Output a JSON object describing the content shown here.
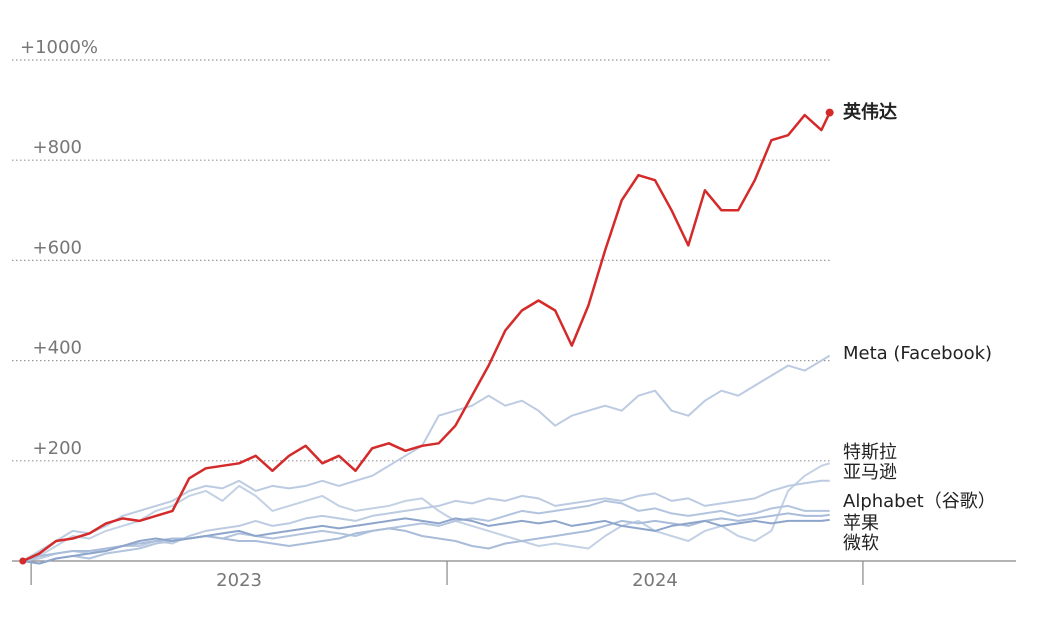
{
  "chart_data": {
    "type": "line",
    "x": [
      2022.98,
      2023.02,
      2023.06,
      2023.1,
      2023.14,
      2023.18,
      2023.22,
      2023.26,
      2023.3,
      2023.34,
      2023.38,
      2023.42,
      2023.46,
      2023.5,
      2023.54,
      2023.58,
      2023.62,
      2023.66,
      2023.7,
      2023.74,
      2023.78,
      2023.82,
      2023.86,
      2023.9,
      2023.94,
      2023.98,
      2024.02,
      2024.06,
      2024.1,
      2024.14,
      2024.18,
      2024.22,
      2024.26,
      2024.3,
      2024.34,
      2024.38,
      2024.42,
      2024.46,
      2024.5,
      2024.54,
      2024.58,
      2024.62,
      2024.66,
      2024.7,
      2024.74,
      2024.78,
      2024.82,
      2024.86,
      2024.9,
      2024.92
    ],
    "xlim": [
      2022.954,
      2025.368
    ],
    "xticks": [
      2023,
      2024,
      2025
    ],
    "xlabels": [
      {
        "value": 2023.5,
        "label": "2023"
      },
      {
        "value": 2024.5,
        "label": "2024"
      }
    ],
    "ylim": [
      0,
      1000
    ],
    "yticks": [
      {
        "value": 200,
        "label": "+200"
      },
      {
        "value": 400,
        "label": "+400"
      },
      {
        "value": 600,
        "label": "+600"
      },
      {
        "value": 800,
        "label": "+800"
      },
      {
        "value": 1000,
        "label": "+1000%"
      }
    ],
    "grid": true,
    "series": [
      {
        "name": "Meta (Facebook)",
        "color": "#bccbe1",
        "values": [
          0,
          20,
          40,
          60,
          55,
          70,
          90,
          100,
          110,
          120,
          140,
          150,
          145,
          160,
          140,
          150,
          145,
          150,
          160,
          150,
          160,
          170,
          190,
          210,
          230,
          290,
          300,
          310,
          330,
          310,
          320,
          300,
          270,
          290,
          300,
          310,
          300,
          330,
          340,
          300,
          290,
          320,
          340,
          330,
          350,
          370,
          390,
          380,
          400,
          410
        ]
      },
      {
        "name": "特斯拉",
        "color": "#c3d1e5",
        "values": [
          0,
          10,
          30,
          50,
          45,
          60,
          70,
          80,
          100,
          110,
          130,
          140,
          120,
          150,
          130,
          100,
          110,
          120,
          130,
          110,
          100,
          105,
          110,
          120,
          125,
          100,
          80,
          70,
          60,
          50,
          40,
          30,
          35,
          30,
          25,
          50,
          70,
          80,
          60,
          50,
          40,
          60,
          70,
          50,
          40,
          60,
          140,
          170,
          190,
          195
        ]
      },
      {
        "name": "亚马逊",
        "color": "#bccbe1",
        "values": [
          0,
          5,
          15,
          20,
          15,
          25,
          30,
          30,
          40,
          35,
          50,
          60,
          65,
          70,
          80,
          70,
          75,
          85,
          90,
          85,
          80,
          90,
          95,
          100,
          105,
          110,
          120,
          115,
          125,
          120,
          130,
          125,
          110,
          115,
          120,
          125,
          120,
          130,
          135,
          120,
          125,
          110,
          115,
          120,
          125,
          140,
          150,
          155,
          160,
          160
        ]
      },
      {
        "name": "Alphabet（谷歌）",
        "color": "#b3c4de",
        "values": [
          0,
          -5,
          5,
          10,
          5,
          15,
          20,
          25,
          35,
          40,
          45,
          50,
          45,
          55,
          50,
          45,
          50,
          55,
          60,
          55,
          50,
          60,
          65,
          70,
          75,
          70,
          80,
          85,
          80,
          90,
          100,
          95,
          100,
          105,
          110,
          120,
          115,
          100,
          105,
          95,
          90,
          95,
          100,
          90,
          95,
          105,
          110,
          100,
          100,
          100
        ]
      },
      {
        "name": "苹果",
        "color": "#a9bcd9",
        "values": [
          0,
          10,
          15,
          20,
          20,
          25,
          30,
          35,
          40,
          45,
          45,
          50,
          45,
          40,
          40,
          35,
          30,
          35,
          40,
          45,
          55,
          60,
          65,
          60,
          50,
          45,
          40,
          30,
          25,
          35,
          40,
          45,
          50,
          55,
          60,
          70,
          80,
          75,
          80,
          75,
          70,
          80,
          85,
          80,
          85,
          90,
          95,
          90,
          90,
          92
        ]
      },
      {
        "name": "微软",
        "color": "#8ea5cb",
        "values": [
          0,
          -5,
          5,
          10,
          15,
          20,
          30,
          40,
          45,
          40,
          45,
          50,
          55,
          60,
          50,
          55,
          60,
          65,
          70,
          65,
          70,
          75,
          80,
          85,
          80,
          75,
          85,
          80,
          70,
          75,
          80,
          75,
          80,
          70,
          75,
          80,
          70,
          65,
          60,
          70,
          75,
          80,
          70,
          75,
          80,
          75,
          80,
          80,
          80,
          82
        ]
      },
      {
        "name": "英伟达",
        "color": "#d42a2a",
        "values": [
          0,
          15,
          40,
          45,
          55,
          75,
          85,
          80,
          90,
          100,
          165,
          185,
          190,
          195,
          210,
          180,
          210,
          230,
          195,
          210,
          180,
          225,
          235,
          220,
          230,
          235,
          270,
          330,
          390,
          460,
          500,
          520,
          500,
          430,
          510,
          620,
          720,
          770,
          760,
          700,
          630,
          740,
          700,
          700,
          760,
          840,
          850,
          890,
          860,
          895
        ]
      }
    ]
  }
}
